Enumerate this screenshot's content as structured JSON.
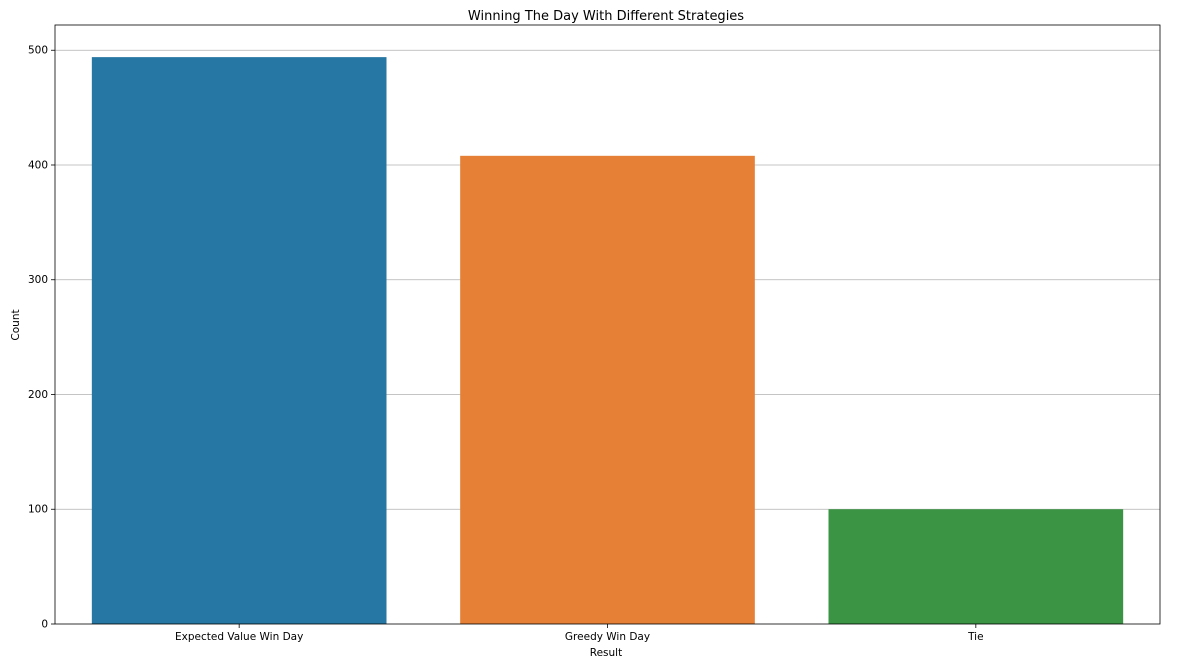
{
  "chart_data": {
    "type": "bar",
    "title": "Winning The Day With Different Strategies",
    "xlabel": "Result",
    "ylabel": "Count",
    "categories": [
      "Expected Value Win Day",
      "Greedy Win Day",
      "Tie"
    ],
    "values": [
      494,
      408,
      100
    ],
    "colors": [
      "#2677a3",
      "#e68037",
      "#3a9443"
    ],
    "ylim": [
      0,
      522
    ],
    "yticks": [
      0,
      100,
      200,
      300,
      400,
      500
    ],
    "grid": "horizontal",
    "legend": "none"
  }
}
